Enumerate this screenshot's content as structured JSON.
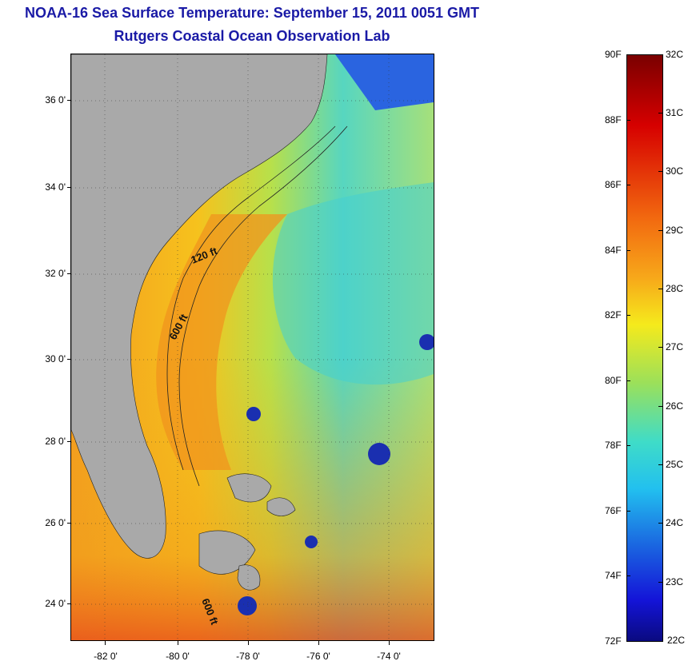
{
  "title": "NOAA-16 Sea Surface Temperature:  September 15, 2011 0051 GMT",
  "subtitle": "Rutgers Coastal Ocean Observation Lab",
  "map": {
    "y_ticks": [
      "36 0'",
      "34 0'",
      "32 0'",
      "30 0'",
      "28 0'",
      "26 0'",
      "24 0'"
    ],
    "x_ticks": [
      "-82 0'",
      "-80 0'",
      "-78 0'",
      "-76 0'",
      "-74 0'"
    ],
    "isobath_labels": [
      "120 ft",
      "600 ft",
      "600 ft"
    ],
    "colors": {
      "land": "#a9a9a9",
      "water_warm": "#f2a11c",
      "water_cool": "#4fd6c6"
    }
  },
  "colorbar": {
    "fahrenheit_labels": [
      "90F",
      "88F",
      "86F",
      "84F",
      "82F",
      "80F",
      "78F",
      "76F",
      "74F",
      "72F"
    ],
    "celsius_labels": [
      "32C",
      "31C",
      "30C",
      "29C",
      "28C",
      "27C",
      "26C",
      "25C",
      "24C",
      "23C",
      "22C"
    ]
  }
}
